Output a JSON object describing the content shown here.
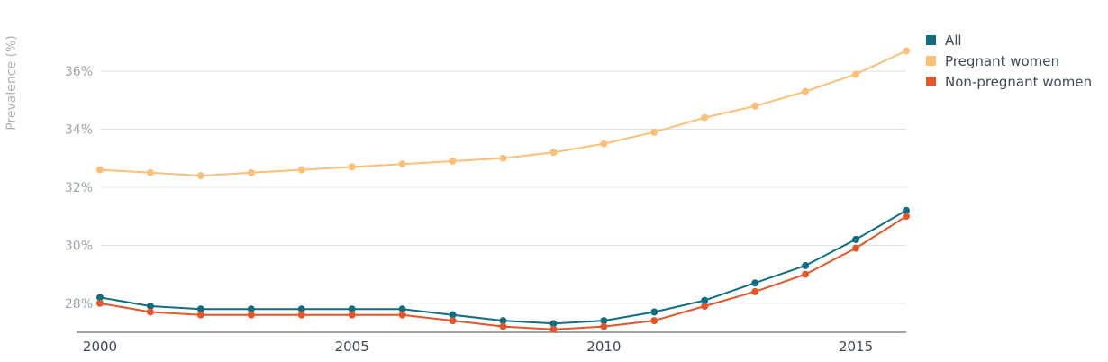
{
  "chart_data": {
    "type": "line",
    "ylabel": "Prevalence (%)",
    "xlabel": "",
    "title": "",
    "x": [
      2000,
      2001,
      2002,
      2003,
      2004,
      2005,
      2006,
      2007,
      2008,
      2009,
      2010,
      2011,
      2012,
      2013,
      2014,
      2015,
      2016
    ],
    "xlim": [
      2000,
      2016
    ],
    "ylim": [
      27,
      37.4
    ],
    "x_ticks": [
      2000,
      2005,
      2010,
      2015
    ],
    "y_ticks": [
      28,
      30,
      32,
      34,
      36
    ],
    "y_tick_labels": [
      "28%",
      "30%",
      "32%",
      "34%",
      "36%"
    ],
    "grid": "horizontal",
    "legend_position": "top-right",
    "series": [
      {
        "name": "All",
        "color": "#0f6e84",
        "values": [
          28.2,
          27.9,
          27.8,
          27.8,
          27.8,
          27.8,
          27.8,
          27.6,
          27.4,
          27.3,
          27.4,
          27.7,
          28.1,
          28.7,
          29.3,
          30.2,
          31.2
        ]
      },
      {
        "name": "Pregnant women",
        "color": "#fbbf77",
        "values": [
          32.6,
          32.5,
          32.4,
          32.5,
          32.6,
          32.7,
          32.8,
          32.9,
          33.0,
          33.2,
          33.5,
          33.9,
          34.4,
          34.8,
          35.3,
          35.9,
          36.7
        ]
      },
      {
        "name": "Non-pregnant women",
        "color": "#e4552a",
        "values": [
          28.0,
          27.7,
          27.6,
          27.6,
          27.6,
          27.6,
          27.6,
          27.4,
          27.2,
          27.1,
          27.2,
          27.4,
          27.9,
          28.4,
          29.0,
          29.9,
          31.0
        ]
      }
    ]
  }
}
